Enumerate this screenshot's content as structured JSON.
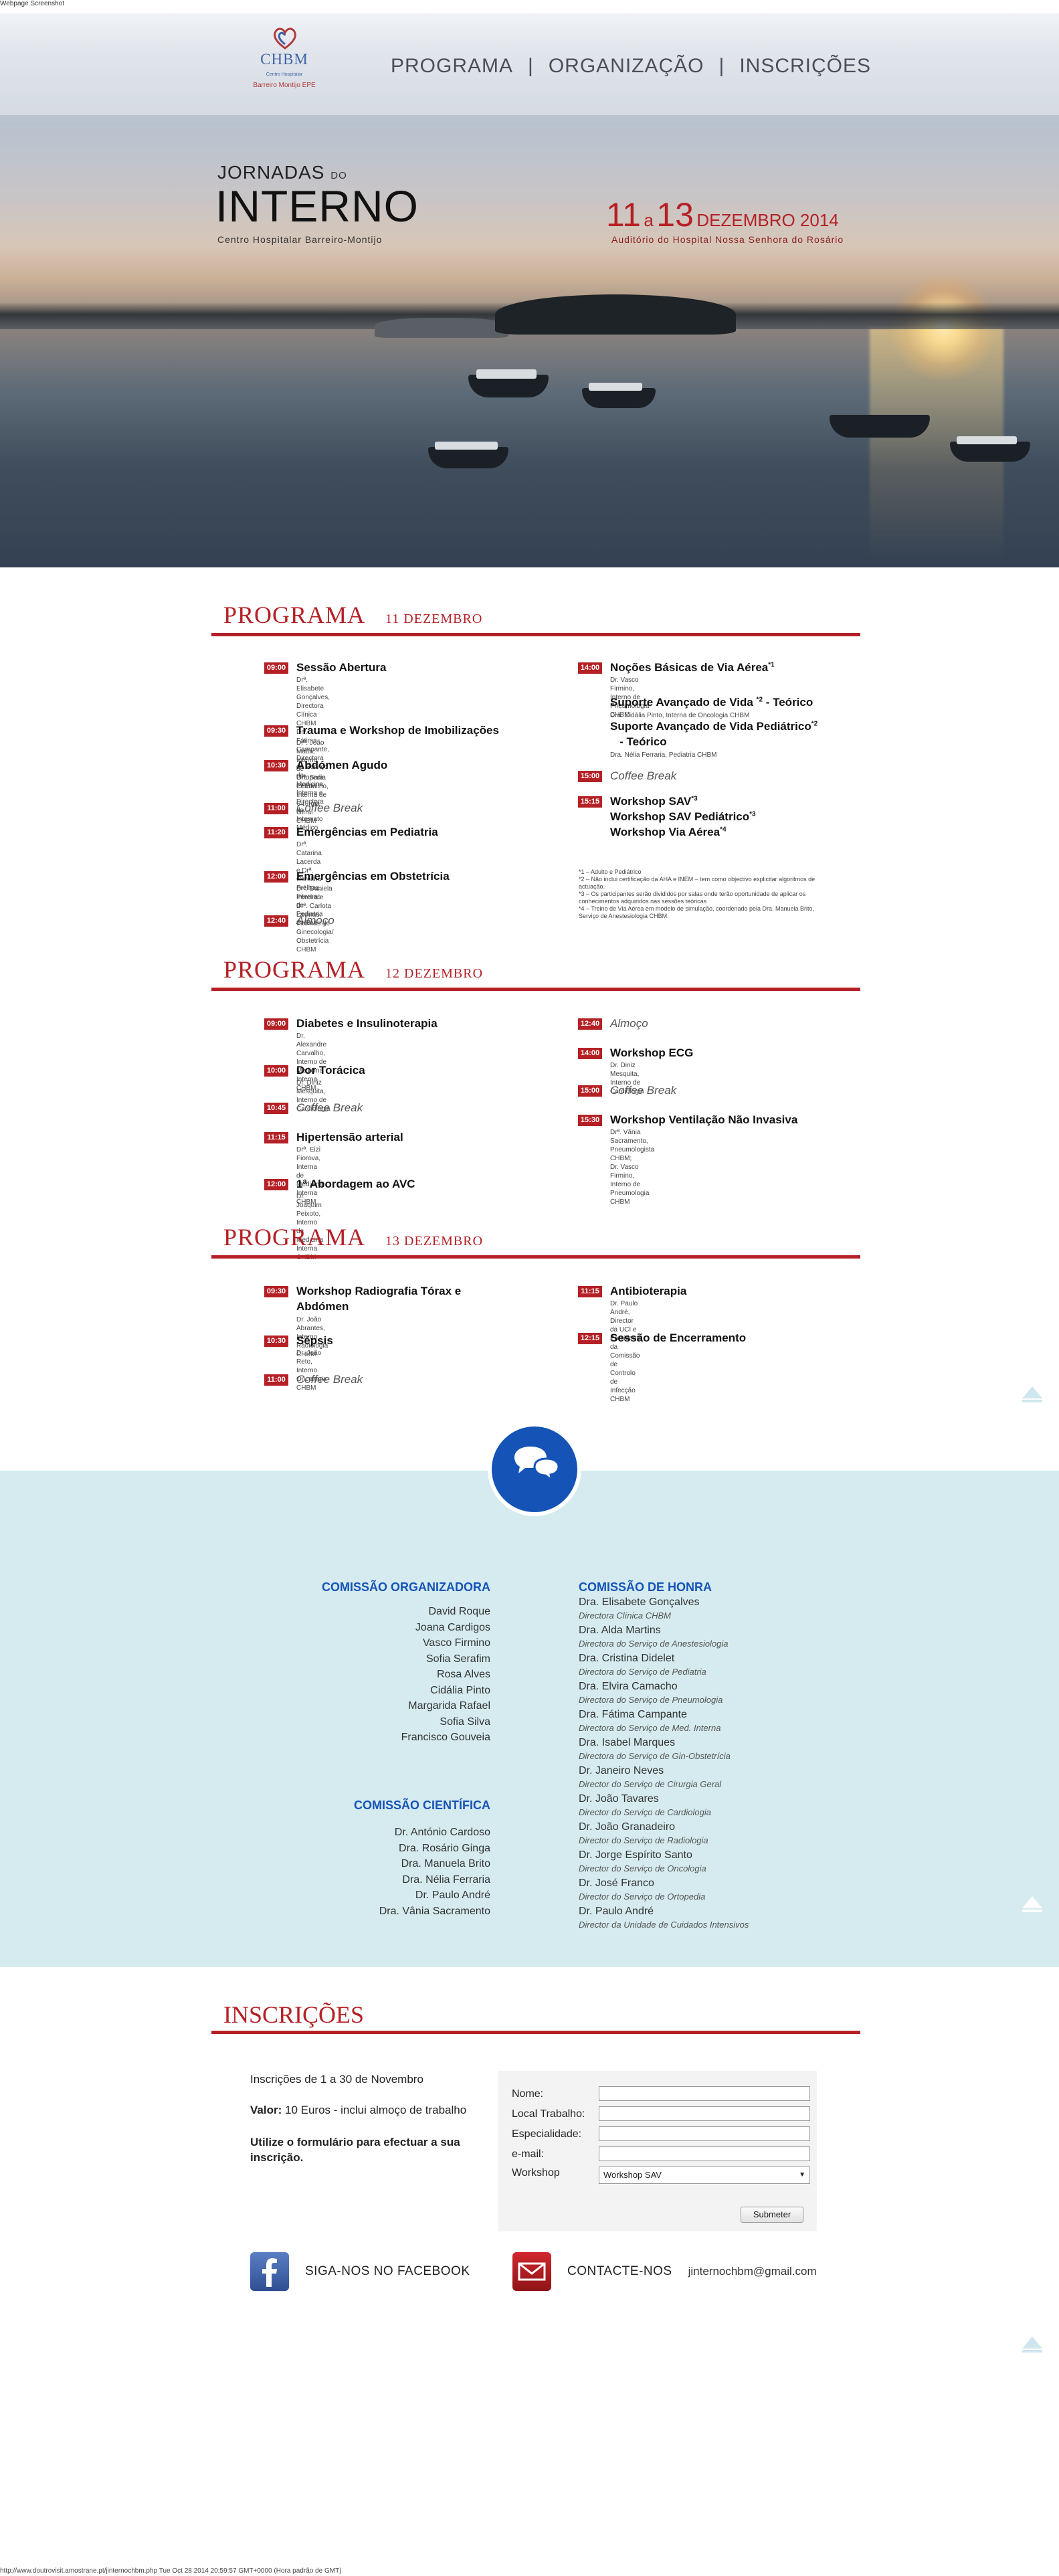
{
  "screenshot": {
    "caption": "Webpage Screenshot",
    "footer": "http://www.doutrovisit.amostrane.pt/jinternochbm.php Tue Oct 28 2014 20:59:57 GMT+0000 (Hora padrão de GMT)"
  },
  "logo": {
    "name": "CHBM",
    "sub1": "Centro Hospitalar",
    "sub2": "Barreiro Montijo EPE"
  },
  "nav": {
    "items": [
      "PROGRAMA",
      "ORGANIZAÇÃO",
      "INSCRIÇÕES"
    ],
    "separator": "|"
  },
  "hero": {
    "title_small": "JORNADAS",
    "title_do": "DO",
    "title_big": "INTERNO",
    "hospital": "Centro Hospitalar Barreiro-Montijo",
    "date_start": "11",
    "date_a": "a",
    "date_end": "13",
    "date_month": "DEZEMBRO 2014",
    "venue": "Auditório do Hospital Nossa Senhora do Rosário"
  },
  "programs": [
    {
      "title": "PROGRAMA",
      "day": "11 DEZEMBRO",
      "left": [
        {
          "time": "09:00",
          "title": "Sessão Abertura",
          "sub": [
            "Drª. Elisabete Gonçalves, Directora Clínica CHBM",
            "Drª. Fátima Campante, Directora do Serviço de",
            "Medicina Interna e Directora do Internato",
            "Médico"
          ]
        },
        {
          "time": "09:30",
          "title": "Trauma e Workshop de Imobilizações",
          "sub": [
            "Drº. João Matta, Interno de Ortopedia CHBM"
          ]
        },
        {
          "time": "10:30",
          "title": "Abdómen Agudo",
          "sub": [
            "Drª. Sara Petronilho, Interna de Cirurgia Geral",
            "CHBM"
          ]
        },
        {
          "time": "11:00",
          "title": "Coffee Break",
          "sub": []
        },
        {
          "time": "11:20",
          "title": "Emergências em Pediatria",
          "sub": [
            "Drª. Catarina Lacerda e Drª. Carolina Prelhaz,",
            "Internas de Pediatria CHBM"
          ]
        },
        {
          "time": "12:00",
          "title": "Emergências em Obstetrícia",
          "sub": [
            "Drª. Daniela Pereira e Drª. Carlota Lavinas,",
            "Internas de Ginecologia/ Obstetrícia CHBM"
          ]
        },
        {
          "time": "12:40",
          "title": "Almoço",
          "sub": []
        }
      ],
      "right": [
        {
          "time": "14:00",
          "title": "Noções Básicas de Via Aérea",
          "sup": "*1",
          "sub": [
            "Dr. Vasco Firmino, Interno de Pneumologia",
            "CHBM"
          ]
        },
        {
          "time": "",
          "title": "Suporte Avançado de Vida ",
          "sup": "*2",
          "title_tail": " - Teórico",
          "sub": [
            "Dra. Cidália Pinto, Interna de Oncologia CHBM"
          ]
        },
        {
          "time": "",
          "title": "Suporte Avançado de Vida Pediátrico",
          "sup": "*2",
          "title_line2": "   - Teórico",
          "sub": [
            "Dra. Nélia Ferraria, Pediatria CHBM"
          ]
        },
        {
          "time": "15:00",
          "title": "Coffee Break",
          "sub": []
        },
        {
          "time": "15:15",
          "title": "Workshop SAV",
          "sup": "*3",
          "sub": []
        },
        {
          "time": "",
          "title": "Workshop SAV Pediátrico",
          "sup": "*3",
          "sub": []
        },
        {
          "time": "",
          "title": "Workshop Via Aérea",
          "sup": "*4",
          "sub": []
        }
      ],
      "notes": [
        "*1 – Adulto e Pediátrico",
        "*2 – Não inclui certificação da AHA e INEM – tem como objectivo explicitar algoritmos de actuação.",
        "*3 – Os participantes serão divididos por salas onde terão oportunidade de aplicar os conhecimentos adquiridos nas sessões teóricas",
        "*4 – Treino de Via Aérea em modelo de simulação, coordenado pela Dra. Manuela Brito, Serviço de Anestesiologia CHBM."
      ]
    },
    {
      "title": "PROGRAMA",
      "day": "12 DEZEMBRO",
      "left": [
        {
          "time": "09:00",
          "title": "Diabetes e Insulinoterapia",
          "sub": [
            "Dr. Alexandre Carvalho, Interno de",
            "Medicina Interna CHBM"
          ]
        },
        {
          "time": "10:00",
          "title": "Dor Torácica",
          "sub": [
            "Dr. Diniz Mesquita, Interno de Cardiologia"
          ]
        },
        {
          "time": "10:45",
          "title": "Coffee Break",
          "sub": []
        },
        {
          "time": "11:15",
          "title": "Hipertensão arterial",
          "sub": [
            "Drª. Eizi Fiorova, Interna de Medicina",
            "Interna CHBM"
          ]
        },
        {
          "time": "12:00",
          "title": "1ª Abordagem ao AVC",
          "sub": [
            "Dr. Joaquim Peixoto, Interno de Medicina",
            "Interna CHBM"
          ]
        }
      ],
      "right": [
        {
          "time": "12:40",
          "title": "Almoço",
          "sub": []
        },
        {
          "time": "14:00",
          "title": "Workshop ECG",
          "sub": [
            "Dr. Diniz Mesquita, Interno de Cardiologia"
          ]
        },
        {
          "time": "15:00",
          "title": "Coffee Break",
          "sub": []
        },
        {
          "time": "15:30",
          "title": "Workshop Ventilação Não Invasiva",
          "sub": [
            "Drª. Vânia Sacramento, Pneumologista CHBM;",
            "Dr. Vasco Firmino, Interno de Pneumologia",
            "CHBM"
          ]
        }
      ]
    },
    {
      "title": "PROGRAMA",
      "day": "13 DEZEMBRO",
      "left": [
        {
          "time": "09:30",
          "title": "Workshop Radiografia Tórax e",
          "title_line2": "Abdómen",
          "sub": [
            "Dr. João Abrantes, Interno Radiologia CHBM"
          ]
        },
        {
          "time": "10:30",
          "title": "Sépsis",
          "sub": [
            "Dr. João Reto, Interno Oncologia CHBM"
          ]
        },
        {
          "time": "11:00",
          "title": "Coffee Break",
          "sub": []
        }
      ],
      "right": [
        {
          "time": "11:15",
          "title": "Antibioterapia",
          "sub": [
            "Dr. Paulo André, Director da UCI e Presidente",
            "da Comissão de Controlo de Infecção CHBM"
          ]
        },
        {
          "time": "12:15",
          "title": "Sessão de Encerramento",
          "sub": []
        }
      ]
    }
  ],
  "comissoes": {
    "organizadora": {
      "title": "COMISSÃO ORGANIZADORA",
      "members": [
        "David Roque",
        "Joana Cardigos",
        "Vasco Firmino",
        "Sofia Serafim",
        "Rosa Alves",
        "Cidália Pinto",
        "Margarida Rafael",
        "Sofia Silva",
        "Francisco Gouveia"
      ]
    },
    "cientifica": {
      "title": "COMISSÃO CIENTÍFICA",
      "members": [
        "Dr. António Cardoso",
        "Dra. Rosário Ginga",
        "Dra. Manuela Brito",
        "Dra. Nélia Ferraria",
        "Dr. Paulo André",
        "Dra. Vânia Sacramento"
      ]
    },
    "honra": {
      "title": "COMISSÃO DE HONRA",
      "members": [
        {
          "name": "Dra. Elisabete Gonçalves",
          "role": "Directora Clínica CHBM"
        },
        {
          "name": "Dra. Alda Martins",
          "role": "Directora do Serviço de Anestesiologia"
        },
        {
          "name": "Dra. Cristina Didelet",
          "role": "Directora do Serviço de Pediatria"
        },
        {
          "name": "Dra. Elvira Camacho",
          "role": "Directora do Serviço de Pneumologia"
        },
        {
          "name": "Dra. Fátima Campante",
          "role": "Directora do Serviço de Med. Interna"
        },
        {
          "name": "Dra. Isabel Marques",
          "role": "Directora do Serviço de Gin-Obstetrícia"
        },
        {
          "name": "Dr. Janeiro Neves",
          "role": "Director do Serviço de Cirurgia Geral"
        },
        {
          "name": "Dr. João Tavares",
          "role": "Director do Serviço de Cardiologia"
        },
        {
          "name": "Dr. João Granadeiro",
          "role": "Director do Serviço de Radiologia"
        },
        {
          "name": "Dr. Jorge Espírito Santo",
          "role": "Director do Serviço de Oncologia"
        },
        {
          "name": "Dr. José Franco",
          "role": "Director do Serviço de Ortopedia"
        },
        {
          "name": "Dr. Paulo André",
          "role": "Director da Unidade de Cuidados Intensivos"
        }
      ]
    }
  },
  "inscricoes": {
    "title": "INSCRIÇÕES",
    "period": "Inscrições de 1 a 30 de Novembro",
    "price_label": "Valor:",
    "price": "10 Euros - inclui almoço de trabalho",
    "cta_line1": "Utilize o formulário para efectuar a sua",
    "cta_line2": "inscrição.",
    "form": {
      "labels": [
        "Nome:",
        "Local Trabalho:",
        "Especialidade:",
        "e-mail:"
      ],
      "workshop_label": "Workshop",
      "workshop_selected": "Workshop SAV",
      "submit": "Submeter"
    }
  },
  "social": {
    "facebook": "SIGA-NOS NO FACEBOOK",
    "contact": "CONTACTE-NOS",
    "email": "jinternochbm@gmail.com"
  },
  "colors": {
    "accent": "#b52025",
    "blue": "#1553b7",
    "band": "#d5ebef"
  }
}
